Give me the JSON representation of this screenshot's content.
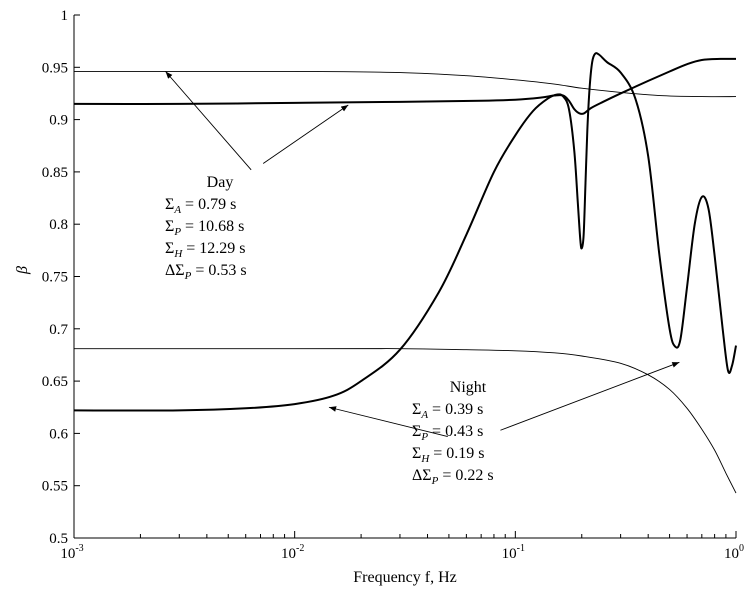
{
  "chart_data": {
    "type": "line",
    "xlabel": "Frequency f, Hz",
    "ylabel": "β",
    "xscale": "log",
    "xlim": [
      0.001,
      1
    ],
    "ylim": [
      0.5,
      1
    ],
    "grid": false,
    "x_ticks": [
      {
        "value": 0.001,
        "base": "10",
        "exp": "-3"
      },
      {
        "value": 0.01,
        "base": "10",
        "exp": "-2"
      },
      {
        "value": 0.1,
        "base": "10",
        "exp": "-1"
      },
      {
        "value": 1,
        "base": "10",
        "exp": "0"
      }
    ],
    "y_ticks": [
      {
        "value": 0.5,
        "label": "0.5"
      },
      {
        "value": 0.55,
        "label": "0.55"
      },
      {
        "value": 0.6,
        "label": "0.6"
      },
      {
        "value": 0.65,
        "label": "0.65"
      },
      {
        "value": 0.7,
        "label": "0.7"
      },
      {
        "value": 0.75,
        "label": "0.75"
      },
      {
        "value": 0.8,
        "label": "0.8"
      },
      {
        "value": 0.85,
        "label": "0.85"
      },
      {
        "value": 0.9,
        "label": "0.9"
      },
      {
        "value": 0.95,
        "label": "0.95"
      },
      {
        "value": 1,
        "label": "1"
      }
    ],
    "series": [
      {
        "style": "thin",
        "points": [
          [
            0.001,
            0.946
          ],
          [
            0.01,
            0.946
          ],
          [
            0.03,
            0.945
          ],
          [
            0.06,
            0.942
          ],
          [
            0.1,
            0.938
          ],
          [
            0.15,
            0.934
          ],
          [
            0.2,
            0.93
          ],
          [
            0.3,
            0.926
          ],
          [
            0.45,
            0.923
          ],
          [
            0.7,
            0.922
          ],
          [
            1,
            0.922
          ]
        ]
      },
      {
        "style": "thick",
        "points": [
          [
            0.001,
            0.915
          ],
          [
            0.003,
            0.915
          ],
          [
            0.01,
            0.916
          ],
          [
            0.03,
            0.917
          ],
          [
            0.07,
            0.918
          ],
          [
            0.1,
            0.919
          ],
          [
            0.13,
            0.921
          ],
          [
            0.15,
            0.923
          ],
          [
            0.165,
            0.923
          ],
          [
            0.175,
            0.918
          ],
          [
            0.185,
            0.91
          ],
          [
            0.195,
            0.906
          ],
          [
            0.205,
            0.906
          ],
          [
            0.22,
            0.911
          ],
          [
            0.25,
            0.917
          ],
          [
            0.3,
            0.925
          ],
          [
            0.4,
            0.937
          ],
          [
            0.5,
            0.946
          ],
          [
            0.6,
            0.953
          ],
          [
            0.7,
            0.957
          ],
          [
            0.85,
            0.958
          ],
          [
            1,
            0.958
          ]
        ]
      },
      {
        "style": "thin",
        "points": [
          [
            0.001,
            0.681
          ],
          [
            0.01,
            0.681
          ],
          [
            0.03,
            0.681
          ],
          [
            0.06,
            0.68
          ],
          [
            0.1,
            0.679
          ],
          [
            0.15,
            0.677
          ],
          [
            0.2,
            0.674
          ],
          [
            0.3,
            0.667
          ],
          [
            0.4,
            0.656
          ],
          [
            0.5,
            0.642
          ],
          [
            0.6,
            0.624
          ],
          [
            0.7,
            0.604
          ],
          [
            0.8,
            0.584
          ],
          [
            0.9,
            0.562
          ],
          [
            1,
            0.543
          ]
        ]
      },
      {
        "style": "thick",
        "points": [
          [
            0.001,
            0.622
          ],
          [
            0.003,
            0.622
          ],
          [
            0.006,
            0.624
          ],
          [
            0.01,
            0.628
          ],
          [
            0.015,
            0.636
          ],
          [
            0.02,
            0.65
          ],
          [
            0.03,
            0.68
          ],
          [
            0.045,
            0.735
          ],
          [
            0.06,
            0.79
          ],
          [
            0.08,
            0.85
          ],
          [
            0.1,
            0.885
          ],
          [
            0.12,
            0.908
          ],
          [
            0.14,
            0.92
          ],
          [
            0.155,
            0.924
          ],
          [
            0.165,
            0.922
          ],
          [
            0.175,
            0.91
          ],
          [
            0.185,
            0.87
          ],
          [
            0.192,
            0.82
          ],
          [
            0.197,
            0.785
          ],
          [
            0.2,
            0.777
          ],
          [
            0.204,
            0.79
          ],
          [
            0.208,
            0.84
          ],
          [
            0.212,
            0.89
          ],
          [
            0.217,
            0.93
          ],
          [
            0.223,
            0.955
          ],
          [
            0.23,
            0.963
          ],
          [
            0.24,
            0.962
          ],
          [
            0.26,
            0.955
          ],
          [
            0.3,
            0.945
          ],
          [
            0.35,
            0.92
          ],
          [
            0.4,
            0.865
          ],
          [
            0.45,
            0.77
          ],
          [
            0.5,
            0.7
          ],
          [
            0.53,
            0.683
          ],
          [
            0.56,
            0.69
          ],
          [
            0.6,
            0.74
          ],
          [
            0.65,
            0.8
          ],
          [
            0.7,
            0.826
          ],
          [
            0.75,
            0.815
          ],
          [
            0.8,
            0.77
          ],
          [
            0.87,
            0.7
          ],
          [
            0.92,
            0.66
          ],
          [
            0.96,
            0.665
          ],
          [
            1,
            0.684
          ]
        ]
      }
    ],
    "annotations": {
      "day": {
        "title": "Day",
        "lines": [
          {
            "pre": "Σ",
            "sub": "A",
            "post": " = 0.79 s"
          },
          {
            "pre": "Σ",
            "sub": "P",
            "post": " = 10.68 s"
          },
          {
            "pre": "Σ",
            "sub": "H",
            "post": " = 12.29 s"
          },
          {
            "pre": "ΔΣ",
            "sub": "P",
            "post": " = 0.53 s"
          }
        ],
        "arrows": [
          {
            "from": [
              0.00635,
              0.852
            ],
            "to": [
              0.0026,
              0.946
            ]
          },
          {
            "from": [
              0.0072,
              0.858
            ],
            "to": [
              0.0175,
              0.914
            ]
          }
        ]
      },
      "night": {
        "title": "Night",
        "lines": [
          {
            "pre": "Σ",
            "sub": "A",
            "post": " = 0.39 s"
          },
          {
            "pre": "Σ",
            "sub": "P",
            "post": " = 0.43 s"
          },
          {
            "pre": "Σ",
            "sub": "H",
            "post": " = 0.19 s"
          },
          {
            "pre": "ΔΣ",
            "sub": "P",
            "post": " = 0.22 s"
          }
        ],
        "arrows": [
          {
            "from": [
              0.0494,
              0.597
            ],
            "to": [
              0.0143,
              0.625
            ]
          },
          {
            "from": [
              0.0856,
              0.603
            ],
            "to": [
              0.554,
              0.668
            ]
          }
        ]
      }
    }
  }
}
